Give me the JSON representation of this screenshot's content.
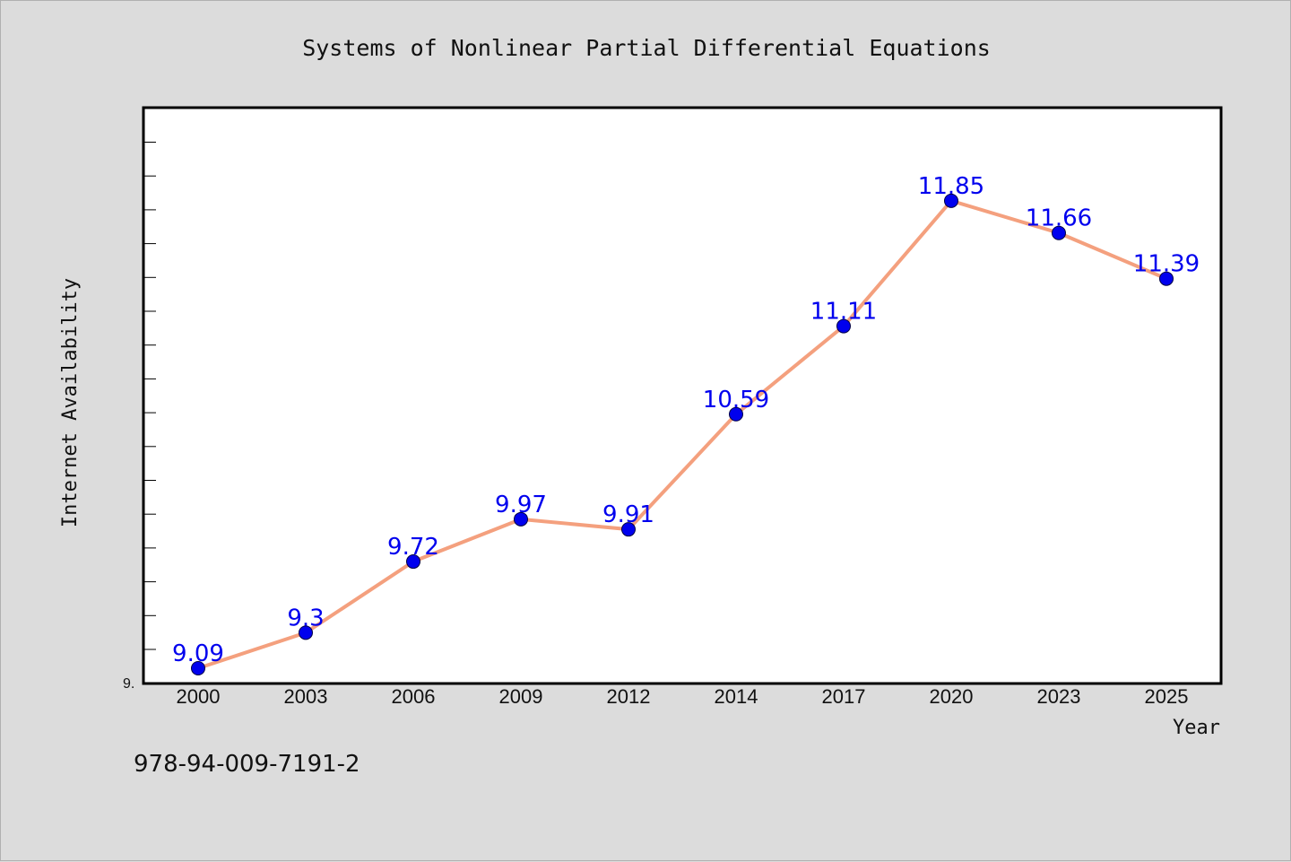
{
  "chart_data": {
    "type": "line",
    "title": "Systems of Nonlinear Partial Differential Equations",
    "xlabel": "Year",
    "ylabel": "Internet Availability",
    "categories": [
      "2000",
      "2003",
      "2006",
      "2009",
      "2012",
      "2014",
      "2017",
      "2020",
      "2023",
      "2025"
    ],
    "series": [
      {
        "values": [
          9.09,
          9.3,
          9.72,
          9.97,
          9.91,
          10.59,
          11.11,
          11.85,
          11.66,
          11.39
        ],
        "labels": [
          "9.09",
          "9.3",
          "9.72",
          "9.97",
          "9.91",
          "10.59",
          "11.11",
          "11.85",
          "11.66",
          "11.39"
        ],
        "line_color": "#f4a07e",
        "marker_color": "#0000ee",
        "label_color": "#0000ee"
      }
    ],
    "ylim": [
      9.0,
      12.4
    ],
    "y_tick_label": "9.",
    "grid": false,
    "legend": "none"
  },
  "footer_text": "978-94-009-7191-2",
  "colors": {
    "background": "#dcdcdc",
    "plot_background": "#ffffff",
    "axis": "#000000"
  }
}
